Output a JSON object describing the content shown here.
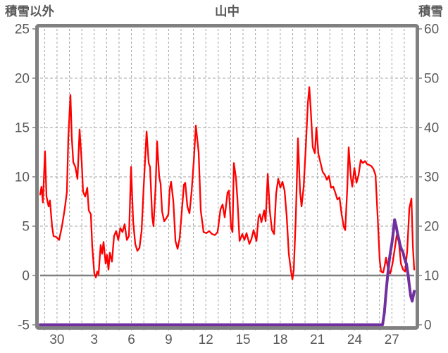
{
  "header": {
    "left_axis_title": "積雪以外",
    "chart_title": "山中",
    "right_axis_title": "積雪"
  },
  "colors": {
    "frame": "#808080",
    "grid": "#a3a3a3",
    "zero_line": "#808080",
    "text": "#595959",
    "red_series": "#ff0000",
    "purple_series": "#7030a0",
    "background": "#ffffff"
  },
  "chart_data": {
    "type": "line",
    "title": "山中",
    "x_axis": {
      "tick_positions": [
        2,
        5,
        8,
        11,
        14,
        17,
        20,
        23,
        26,
        29
      ],
      "tick_labels": [
        "30",
        "3",
        "6",
        "9",
        "12",
        "15",
        "18",
        "21",
        "24",
        "27"
      ],
      "range": [
        0.64,
        30.8
      ],
      "x_grid_interval_days": 1
    },
    "left_axis": {
      "title": "積雪以外",
      "range": [
        -5,
        25
      ],
      "ticks": [
        25,
        20,
        15,
        10,
        5,
        0,
        -5
      ]
    },
    "right_axis": {
      "title": "積雪",
      "range": [
        0,
        60
      ],
      "ticks": [
        60,
        50,
        40,
        30,
        20,
        10,
        0
      ]
    },
    "grid": {
      "horizontal_left_values": [
        20,
        15,
        10,
        5
      ],
      "zero_line_left_value": 0,
      "vertical": true
    },
    "legend": "none",
    "series": [
      {
        "name": "積雪以外",
        "axis": "left",
        "color": "#ff0000",
        "width": 2.3,
        "points": [
          [
            0.64,
            8.2
          ],
          [
            0.75,
            9.0
          ],
          [
            0.86,
            7.4
          ],
          [
            1.03,
            12.6
          ],
          [
            1.15,
            8.0
          ],
          [
            1.32,
            7.0
          ],
          [
            1.43,
            7.6
          ],
          [
            1.6,
            5.0
          ],
          [
            1.72,
            4.0
          ],
          [
            1.94,
            3.9
          ],
          [
            2.17,
            3.6
          ],
          [
            2.4,
            5.0
          ],
          [
            2.63,
            6.8
          ],
          [
            2.8,
            8.5
          ],
          [
            2.91,
            14.0
          ],
          [
            3.08,
            18.3
          ],
          [
            3.19,
            14.0
          ],
          [
            3.31,
            11.5
          ],
          [
            3.48,
            11.0
          ],
          [
            3.65,
            9.8
          ],
          [
            3.82,
            14.8
          ],
          [
            3.99,
            11.5
          ],
          [
            4.1,
            8.5
          ],
          [
            4.27,
            8.0
          ],
          [
            4.44,
            8.9
          ],
          [
            4.56,
            6.6
          ],
          [
            4.73,
            6.2
          ],
          [
            4.84,
            3.0
          ],
          [
            5.01,
            0.2
          ],
          [
            5.13,
            -0.2
          ],
          [
            5.24,
            0.4
          ],
          [
            5.35,
            0.1
          ],
          [
            5.52,
            3.1
          ],
          [
            5.64,
            2.2
          ],
          [
            5.75,
            3.4
          ],
          [
            5.92,
            1.2
          ],
          [
            6.03,
            2.1
          ],
          [
            6.15,
            0.6
          ],
          [
            6.26,
            2.3
          ],
          [
            6.43,
            1.4
          ],
          [
            6.6,
            4.0
          ],
          [
            6.77,
            4.5
          ],
          [
            6.94,
            3.6
          ],
          [
            7.11,
            4.8
          ],
          [
            7.28,
            4.4
          ],
          [
            7.45,
            5.2
          ],
          [
            7.63,
            3.6
          ],
          [
            7.8,
            4.0
          ],
          [
            7.97,
            11.0
          ],
          [
            8.14,
            5.5
          ],
          [
            8.31,
            3.2
          ],
          [
            8.48,
            2.5
          ],
          [
            8.65,
            2.8
          ],
          [
            8.82,
            4.5
          ],
          [
            8.99,
            9.0
          ],
          [
            9.22,
            14.6
          ],
          [
            9.39,
            11.4
          ],
          [
            9.5,
            11.0
          ],
          [
            9.67,
            6.0
          ],
          [
            9.78,
            5.0
          ],
          [
            9.95,
            9.0
          ],
          [
            10.07,
            13.6
          ],
          [
            10.24,
            10.0
          ],
          [
            10.35,
            9.3
          ],
          [
            10.47,
            6.5
          ],
          [
            10.64,
            5.5
          ],
          [
            10.81,
            5.8
          ],
          [
            10.98,
            6.2
          ],
          [
            11.09,
            8.8
          ],
          [
            11.2,
            9.5
          ],
          [
            11.38,
            7.5
          ],
          [
            11.55,
            3.5
          ],
          [
            11.72,
            2.7
          ],
          [
            11.89,
            3.8
          ],
          [
            12.06,
            6.5
          ],
          [
            12.23,
            9.2
          ],
          [
            12.34,
            9.4
          ],
          [
            12.51,
            7.0
          ],
          [
            12.68,
            6.3
          ],
          [
            12.85,
            8.5
          ],
          [
            13.02,
            11.5
          ],
          [
            13.19,
            15.2
          ],
          [
            13.31,
            13.8
          ],
          [
            13.42,
            12.5
          ],
          [
            13.59,
            6.6
          ],
          [
            13.82,
            4.4
          ],
          [
            14.05,
            4.3
          ],
          [
            14.27,
            4.5
          ],
          [
            14.5,
            4.2
          ],
          [
            14.73,
            4.1
          ],
          [
            14.95,
            4.4
          ],
          [
            15.18,
            6.7
          ],
          [
            15.35,
            7.2
          ],
          [
            15.52,
            5.9
          ],
          [
            15.75,
            8.4
          ],
          [
            15.86,
            8.6
          ],
          [
            16.03,
            4.9
          ],
          [
            16.15,
            4.4
          ],
          [
            16.26,
            11.4
          ],
          [
            16.43,
            9.9
          ],
          [
            16.55,
            7.7
          ],
          [
            16.72,
            3.5
          ],
          [
            16.94,
            4.2
          ],
          [
            17.11,
            3.6
          ],
          [
            17.28,
            4.3
          ],
          [
            17.51,
            3.2
          ],
          [
            17.68,
            3.7
          ],
          [
            17.85,
            4.6
          ],
          [
            18.08,
            3.5
          ],
          [
            18.25,
            5.9
          ],
          [
            18.36,
            6.2
          ],
          [
            18.48,
            5.4
          ],
          [
            18.7,
            6.6
          ],
          [
            18.82,
            5.5
          ],
          [
            18.99,
            10.3
          ],
          [
            19.16,
            6.5
          ],
          [
            19.33,
            4.6
          ],
          [
            19.5,
            4.2
          ],
          [
            19.67,
            8.3
          ],
          [
            19.84,
            9.8
          ],
          [
            20.01,
            8.9
          ],
          [
            20.18,
            9.5
          ],
          [
            20.35,
            8.6
          ],
          [
            20.52,
            6.0
          ],
          [
            20.69,
            2.2
          ],
          [
            20.86,
            0.5
          ],
          [
            20.98,
            -0.4
          ],
          [
            21.09,
            0.5
          ],
          [
            21.26,
            6.0
          ],
          [
            21.43,
            13.9
          ],
          [
            21.6,
            8.5
          ],
          [
            21.72,
            7.0
          ],
          [
            21.89,
            9.0
          ],
          [
            22.06,
            13.0
          ],
          [
            22.23,
            17.5
          ],
          [
            22.34,
            19.1
          ],
          [
            22.45,
            17.0
          ],
          [
            22.62,
            13.0
          ],
          [
            22.79,
            12.4
          ],
          [
            22.91,
            15.0
          ],
          [
            23.08,
            12.3
          ],
          [
            23.25,
            11.4
          ],
          [
            23.42,
            10.5
          ],
          [
            23.59,
            10.2
          ],
          [
            23.76,
            9.7
          ],
          [
            23.93,
            10.1
          ],
          [
            24.1,
            8.9
          ],
          [
            24.27,
            9.0
          ],
          [
            24.44,
            8.4
          ],
          [
            24.61,
            7.7
          ],
          [
            24.78,
            7.9
          ],
          [
            24.95,
            6.2
          ],
          [
            25.13,
            4.9
          ],
          [
            25.24,
            4.6
          ],
          [
            25.41,
            9.0
          ],
          [
            25.52,
            13.0
          ],
          [
            25.69,
            10.0
          ],
          [
            25.81,
            9.0
          ],
          [
            25.98,
            10.9
          ],
          [
            26.15,
            9.4
          ],
          [
            26.32,
            10.2
          ],
          [
            26.49,
            11.7
          ],
          [
            26.66,
            11.4
          ],
          [
            26.83,
            11.6
          ],
          [
            27.0,
            11.3
          ],
          [
            27.17,
            11.2
          ],
          [
            27.34,
            11.1
          ],
          [
            27.51,
            10.8
          ],
          [
            27.68,
            10.2
          ],
          [
            27.85,
            6.0
          ],
          [
            28.02,
            1.5
          ],
          [
            28.13,
            0.4
          ],
          [
            28.3,
            0.3
          ],
          [
            28.42,
            1.0
          ],
          [
            28.53,
            1.8
          ],
          [
            28.7,
            0.6
          ],
          [
            28.87,
            0.2
          ],
          [
            29.05,
            1.2
          ],
          [
            29.22,
            2.6
          ],
          [
            29.39,
            4.1
          ],
          [
            29.56,
            3.4
          ],
          [
            29.73,
            1.2
          ],
          [
            29.9,
            0.6
          ],
          [
            30.07,
            0.4
          ],
          [
            30.24,
            2.5
          ],
          [
            30.41,
            6.8
          ],
          [
            30.58,
            7.8
          ],
          [
            30.69,
            3.0
          ],
          [
            30.8,
            0.6
          ]
        ]
      },
      {
        "name": "積雪",
        "axis": "right",
        "color": "#7030a0",
        "width": 4,
        "points": [
          [
            0.64,
            0
          ],
          [
            14.0,
            0
          ],
          [
            28.25,
            0
          ],
          [
            28.4,
            2.5
          ],
          [
            28.53,
            6.5
          ],
          [
            28.64,
            9.5
          ],
          [
            28.76,
            12.5
          ],
          [
            28.87,
            14.5
          ],
          [
            28.98,
            16.2
          ],
          [
            29.1,
            18.5
          ],
          [
            29.22,
            21.3
          ],
          [
            29.33,
            20.2
          ],
          [
            29.45,
            18.6
          ],
          [
            29.56,
            17.4
          ],
          [
            29.67,
            16.1
          ],
          [
            29.79,
            15.2
          ],
          [
            29.9,
            14.7
          ],
          [
            30.01,
            13.5
          ],
          [
            30.18,
            12.3
          ],
          [
            30.3,
            10.3
          ],
          [
            30.41,
            8.0
          ],
          [
            30.52,
            5.8
          ],
          [
            30.64,
            4.8
          ],
          [
            30.8,
            6.8
          ]
        ]
      }
    ]
  }
}
